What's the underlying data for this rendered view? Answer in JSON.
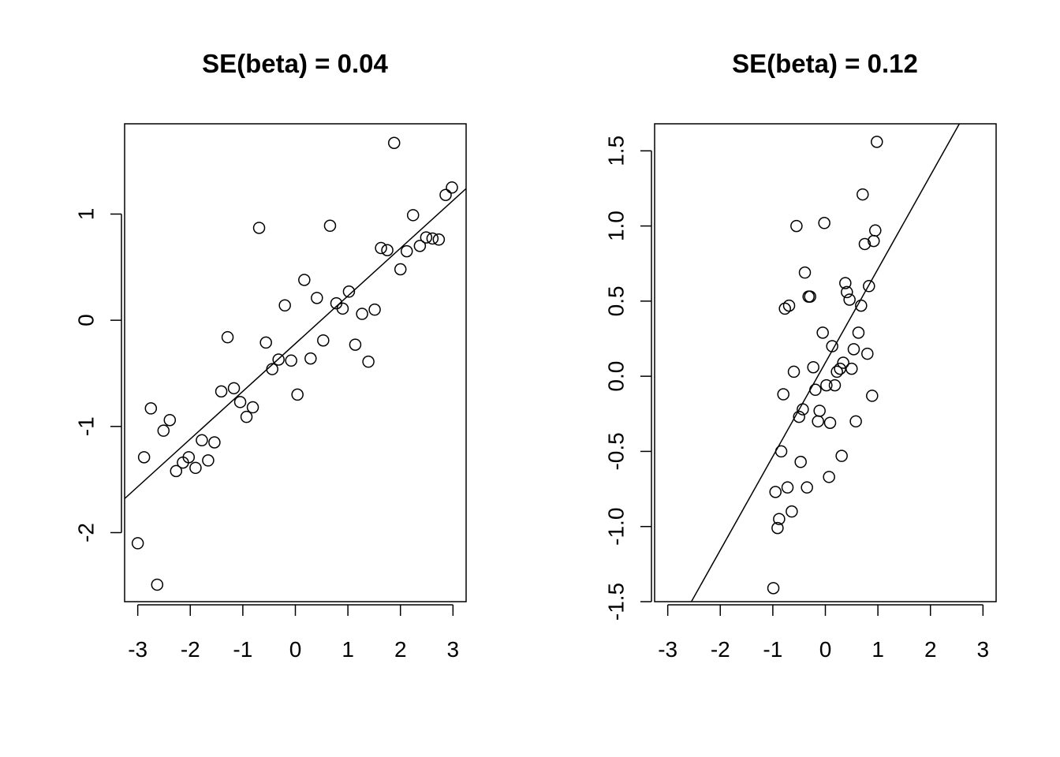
{
  "chart_data": [
    {
      "type": "scatter",
      "title": "SE(beta) = 0.04",
      "xlabel": "",
      "ylabel": "",
      "xlim": [
        -3.25,
        3.25
      ],
      "ylim": [
        -2.65,
        1.85
      ],
      "xticks": [
        -3,
        -2,
        -1,
        0,
        1,
        2,
        3
      ],
      "xtick_labels": [
        "-3",
        "-2",
        "-1",
        "0",
        "1",
        "2",
        "3"
      ],
      "yticks": [
        -2,
        -1,
        0,
        1
      ],
      "ytick_labels": [
        "-2",
        "-1",
        "0",
        "1"
      ],
      "grid": false,
      "fit_line": {
        "x": [
          -3.25,
          3.25
        ],
        "y": [
          -1.68,
          1.24
        ]
      },
      "points": [
        {
          "x": -3.0,
          "y": -2.1
        },
        {
          "x": -2.88,
          "y": -1.29
        },
        {
          "x": -2.75,
          "y": -0.83
        },
        {
          "x": -2.63,
          "y": -2.49
        },
        {
          "x": -2.51,
          "y": -1.04
        },
        {
          "x": -2.39,
          "y": -0.94
        },
        {
          "x": -2.27,
          "y": -1.42
        },
        {
          "x": -2.14,
          "y": -1.34
        },
        {
          "x": -2.03,
          "y": -1.29
        },
        {
          "x": -1.9,
          "y": -1.39
        },
        {
          "x": -1.78,
          "y": -1.13
        },
        {
          "x": -1.66,
          "y": -1.32
        },
        {
          "x": -1.54,
          "y": -1.15
        },
        {
          "x": -1.41,
          "y": -0.67
        },
        {
          "x": -1.29,
          "y": -0.16
        },
        {
          "x": -1.17,
          "y": -0.64
        },
        {
          "x": -1.05,
          "y": -0.77
        },
        {
          "x": -0.93,
          "y": -0.91
        },
        {
          "x": -0.81,
          "y": -0.82
        },
        {
          "x": -0.69,
          "y": 0.87
        },
        {
          "x": -0.56,
          "y": -0.21
        },
        {
          "x": -0.44,
          "y": -0.46
        },
        {
          "x": -0.32,
          "y": -0.37
        },
        {
          "x": -0.2,
          "y": 0.14
        },
        {
          "x": -0.08,
          "y": -0.38
        },
        {
          "x": 0.04,
          "y": -0.7
        },
        {
          "x": 0.17,
          "y": 0.38
        },
        {
          "x": 0.29,
          "y": -0.36
        },
        {
          "x": 0.41,
          "y": 0.21
        },
        {
          "x": 0.53,
          "y": -0.19
        },
        {
          "x": 0.66,
          "y": 0.89
        },
        {
          "x": 0.78,
          "y": 0.16
        },
        {
          "x": 0.9,
          "y": 0.11
        },
        {
          "x": 1.02,
          "y": 0.27
        },
        {
          "x": 1.14,
          "y": -0.23
        },
        {
          "x": 1.27,
          "y": 0.06
        },
        {
          "x": 1.39,
          "y": -0.39
        },
        {
          "x": 1.51,
          "y": 0.1
        },
        {
          "x": 1.63,
          "y": 0.68
        },
        {
          "x": 1.75,
          "y": 0.66
        },
        {
          "x": 1.88,
          "y": 1.67
        },
        {
          "x": 2.0,
          "y": 0.48
        },
        {
          "x": 2.12,
          "y": 0.65
        },
        {
          "x": 2.24,
          "y": 0.99
        },
        {
          "x": 2.37,
          "y": 0.7
        },
        {
          "x": 2.49,
          "y": 0.78
        },
        {
          "x": 2.61,
          "y": 0.77
        },
        {
          "x": 2.73,
          "y": 0.76
        },
        {
          "x": 2.86,
          "y": 1.18
        },
        {
          "x": 2.98,
          "y": 1.25
        }
      ]
    },
    {
      "type": "scatter",
      "title": "SE(beta) = 0.12",
      "xlabel": "",
      "ylabel": "",
      "xlim": [
        -3.25,
        3.25
      ],
      "ylim": [
        -1.5,
        1.68
      ],
      "xticks": [
        -3,
        -2,
        -1,
        0,
        1,
        2,
        3
      ],
      "xtick_labels": [
        "-3",
        "-2",
        "-1",
        "0",
        "1",
        "2",
        "3"
      ],
      "yticks": [
        -1.5,
        -1.0,
        -0.5,
        0.0,
        0.5,
        1.0,
        1.5
      ],
      "ytick_labels": [
        "-1.5",
        "-1.0",
        "-0.5",
        "0.0",
        "0.5",
        "1.0",
        "1.5"
      ],
      "grid": false,
      "fit_line": {
        "x": [
          -2.55,
          2.55
        ],
        "y": [
          -1.5,
          1.68
        ]
      },
      "points": [
        {
          "x": 0.98,
          "y": 1.56
        },
        {
          "x": 0.71,
          "y": 1.21
        },
        {
          "x": -0.02,
          "y": 1.02
        },
        {
          "x": -0.55,
          "y": 1.0
        },
        {
          "x": 0.95,
          "y": 0.97
        },
        {
          "x": 0.92,
          "y": 0.9
        },
        {
          "x": 0.75,
          "y": 0.88
        },
        {
          "x": -0.39,
          "y": 0.69
        },
        {
          "x": 0.38,
          "y": 0.62
        },
        {
          "x": 0.83,
          "y": 0.6
        },
        {
          "x": 0.41,
          "y": 0.56
        },
        {
          "x": -0.32,
          "y": 0.53
        },
        {
          "x": -0.29,
          "y": 0.53
        },
        {
          "x": 0.46,
          "y": 0.51
        },
        {
          "x": -0.69,
          "y": 0.47
        },
        {
          "x": -0.77,
          "y": 0.45
        },
        {
          "x": 0.68,
          "y": 0.47
        },
        {
          "x": -0.05,
          "y": 0.29
        },
        {
          "x": 0.63,
          "y": 0.29
        },
        {
          "x": 0.13,
          "y": 0.2
        },
        {
          "x": 0.54,
          "y": 0.18
        },
        {
          "x": 0.8,
          "y": 0.15
        },
        {
          "x": 0.34,
          "y": 0.09
        },
        {
          "x": -0.23,
          "y": 0.06
        },
        {
          "x": 0.28,
          "y": 0.05
        },
        {
          "x": 0.5,
          "y": 0.05
        },
        {
          "x": -0.6,
          "y": 0.03
        },
        {
          "x": 0.22,
          "y": 0.03
        },
        {
          "x": 0.02,
          "y": -0.06
        },
        {
          "x": 0.18,
          "y": -0.06
        },
        {
          "x": -0.19,
          "y": -0.09
        },
        {
          "x": -0.8,
          "y": -0.12
        },
        {
          "x": 0.89,
          "y": -0.13
        },
        {
          "x": -0.43,
          "y": -0.22
        },
        {
          "x": -0.11,
          "y": -0.23
        },
        {
          "x": -0.5,
          "y": -0.27
        },
        {
          "x": -0.14,
          "y": -0.3
        },
        {
          "x": 0.09,
          "y": -0.31
        },
        {
          "x": 0.58,
          "y": -0.3
        },
        {
          "x": -0.84,
          "y": -0.5
        },
        {
          "x": 0.31,
          "y": -0.53
        },
        {
          "x": -0.47,
          "y": -0.57
        },
        {
          "x": 0.07,
          "y": -0.67
        },
        {
          "x": -0.72,
          "y": -0.74
        },
        {
          "x": -0.35,
          "y": -0.74
        },
        {
          "x": -0.95,
          "y": -0.77
        },
        {
          "x": -0.64,
          "y": -0.9
        },
        {
          "x": -0.88,
          "y": -0.95
        },
        {
          "x": -0.91,
          "y": -1.01
        },
        {
          "x": -0.99,
          "y": -1.41
        }
      ]
    }
  ]
}
